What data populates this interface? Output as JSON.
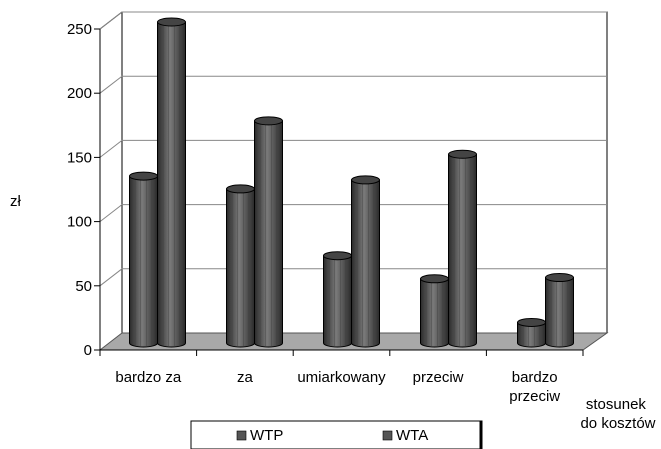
{
  "chart_data": {
    "type": "bar",
    "title": "",
    "ylabel": "zł",
    "xlabel_lines": [
      "stosunek",
      "do kosztów"
    ],
    "categories": [
      [
        "bardzo za"
      ],
      [
        "za"
      ],
      [
        "umiarkowany"
      ],
      [
        "przeciw"
      ],
      [
        "bardzo",
        "przeciw"
      ]
    ],
    "series": [
      {
        "name": "WTP",
        "values": [
          130,
          120,
          68,
          50,
          16
        ]
      },
      {
        "name": "WTA",
        "values": [
          250,
          173,
          127,
          147,
          51
        ]
      }
    ],
    "ylim": [
      0,
      250
    ],
    "yticks": [
      "0",
      "50",
      "100",
      "150",
      "200",
      "250"
    ],
    "grid": true,
    "legend_position": "bottom",
    "colors": {
      "bar": "#555555",
      "bar_dark": "#2a2a2a",
      "bar_light": "#7a7a7a",
      "floor": "#a8a8a8",
      "grid": "#888888"
    }
  }
}
